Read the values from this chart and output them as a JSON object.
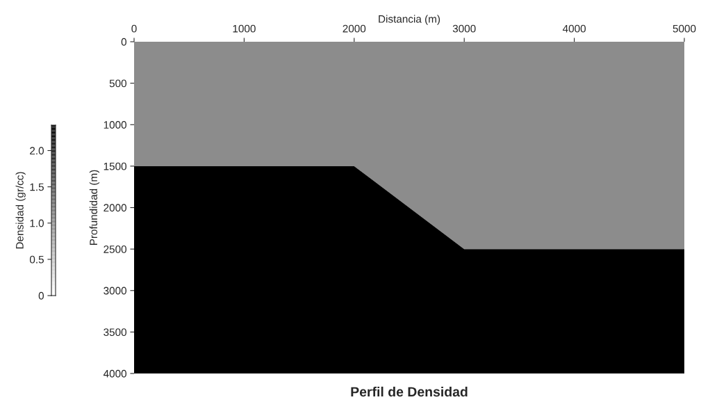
{
  "chart_data": {
    "type": "area",
    "stacked": true,
    "xlabel": "Distancia (m)",
    "ylabel": "Profundidad (m)",
    "clabel": "Densidad (gr/cc)",
    "annotations": [
      "Perfil de Densidad"
    ],
    "x": [
      0,
      2000,
      3000,
      5000
    ],
    "series": [
      {
        "color": "#8c8c8c",
        "values": [
          1500,
          1500,
          2500,
          2500
        ]
      },
      {
        "color": "#000000",
        "values": [
          2500,
          2500,
          1500,
          1500
        ]
      }
    ],
    "xlim": [
      0,
      5000
    ],
    "xticks": [
      0,
      1000,
      2000,
      3000,
      4000,
      5000
    ],
    "ylim": [
      4000,
      0
    ],
    "yticks": [
      0,
      500,
      1000,
      1500,
      2000,
      2500,
      3000,
      3500,
      4000
    ],
    "clim": [
      0,
      2.35
    ],
    "cticks": [
      {
        "value": 0,
        "label": "0"
      },
      {
        "value": 0.5,
        "label": "0.5"
      },
      {
        "value": 1.0,
        "label": "1.0"
      },
      {
        "value": 1.5,
        "label": "1.5"
      },
      {
        "value": 2.0,
        "label": "2.0"
      }
    ],
    "grid": false
  }
}
